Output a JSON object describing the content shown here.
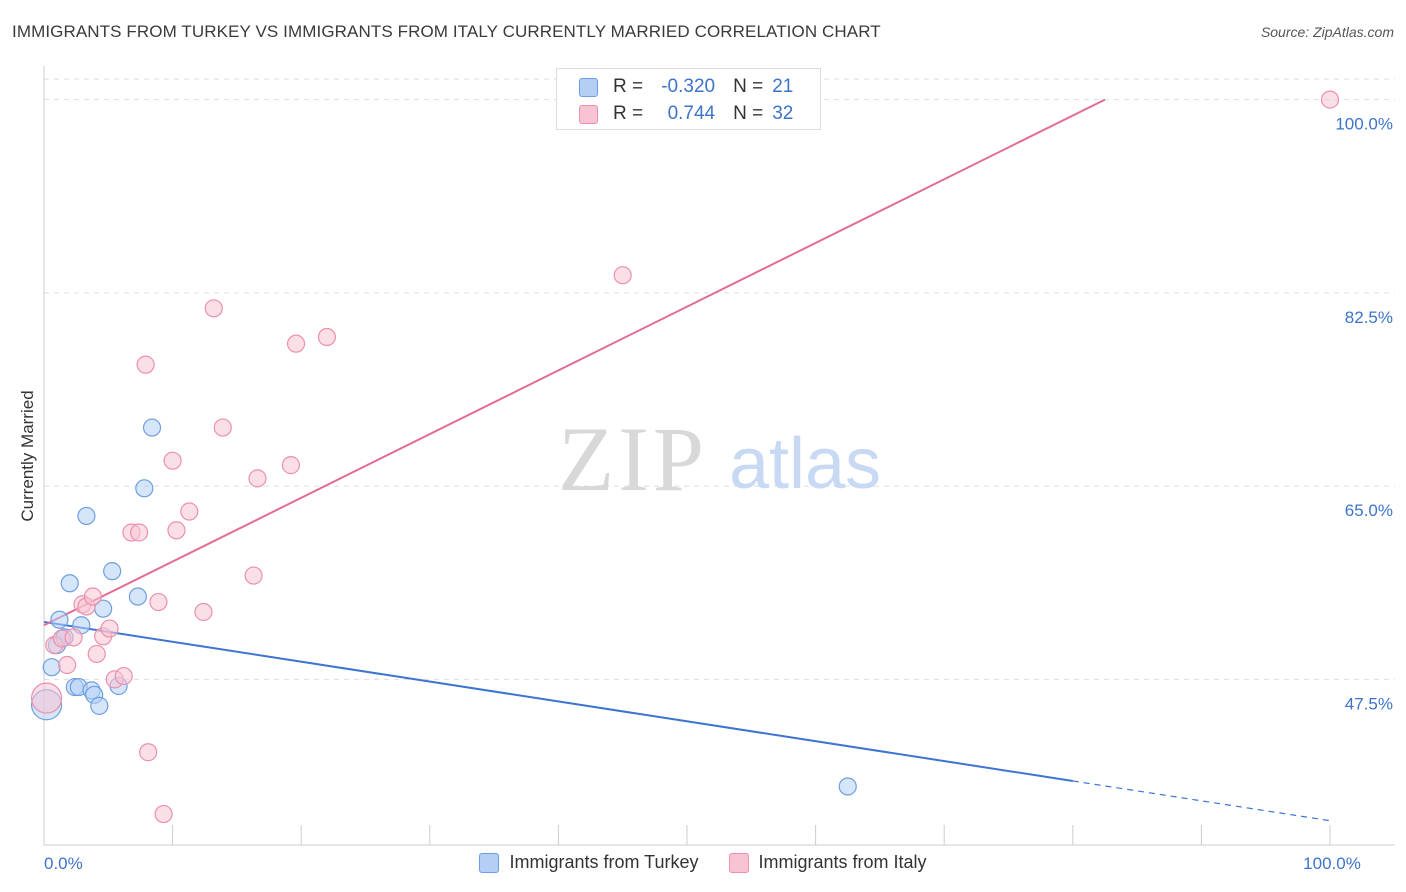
{
  "title": "IMMIGRANTS FROM TURKEY VS IMMIGRANTS FROM ITALY CURRENTLY MARRIED CORRELATION CHART",
  "source": "Source: ZipAtlas.com",
  "watermark": {
    "zip": "ZIP",
    "atlas": "atlas"
  },
  "colors": {
    "turkey_fill": "#b3cff5",
    "turkey_stroke": "#6f9fe0",
    "turkey_line": "#3d74d0",
    "italy_fill": "#f8c4d4",
    "italy_stroke": "#ec90ad",
    "italy_line": "#e36c93",
    "grid": "#dddddd",
    "axis_label": "#3d74c9"
  },
  "stats": {
    "r_label": "R =",
    "n_label": "N =",
    "turkey": {
      "r": "-0.320",
      "n": "21"
    },
    "italy": {
      "r": "0.744",
      "n": "32"
    }
  },
  "legend": {
    "turkey": "Immigrants from Turkey",
    "italy": "Immigrants from Italy"
  },
  "chart_data": {
    "type": "scatter",
    "title": "IMMIGRANTS FROM TURKEY VS IMMIGRANTS FROM ITALY CURRENTLY MARRIED CORRELATION CHART",
    "xlabel": "",
    "ylabel": "Currently Married",
    "xlim": [
      0,
      100
    ],
    "ylim": [
      32.5,
      102.5
    ],
    "x_tick_labels": [
      {
        "value": 0,
        "label": "0.0%"
      },
      {
        "value": 100,
        "label": "100.0%"
      }
    ],
    "y_tick_labels": [
      {
        "value": 47.5,
        "label": "47.5%"
      },
      {
        "value": 65.0,
        "label": "65.0%"
      },
      {
        "value": 82.5,
        "label": "82.5%"
      },
      {
        "value": 100.0,
        "label": "100.0%"
      }
    ],
    "grid": true,
    "series": [
      {
        "name": "Immigrants from Turkey",
        "color": "#6f9fe0",
        "points": [
          {
            "x": 0.2,
            "y": 45.2,
            "size": "large"
          },
          {
            "x": 0.6,
            "y": 48.6
          },
          {
            "x": 1.0,
            "y": 50.6
          },
          {
            "x": 1.2,
            "y": 52.9
          },
          {
            "x": 1.4,
            "y": 51.2
          },
          {
            "x": 1.6,
            "y": 51.3
          },
          {
            "x": 2.0,
            "y": 56.2
          },
          {
            "x": 2.4,
            "y": 46.8
          },
          {
            "x": 2.7,
            "y": 46.8
          },
          {
            "x": 2.9,
            "y": 52.4
          },
          {
            "x": 3.3,
            "y": 62.3
          },
          {
            "x": 3.7,
            "y": 46.5
          },
          {
            "x": 3.9,
            "y": 46.1
          },
          {
            "x": 4.3,
            "y": 45.1
          },
          {
            "x": 4.6,
            "y": 53.9
          },
          {
            "x": 5.3,
            "y": 57.3
          },
          {
            "x": 5.8,
            "y": 46.9
          },
          {
            "x": 7.3,
            "y": 55.0
          },
          {
            "x": 7.8,
            "y": 64.8
          },
          {
            "x": 8.4,
            "y": 70.3
          },
          {
            "x": 62.5,
            "y": 37.8
          }
        ],
        "trend": {
          "x0": 0,
          "y0": 52.7,
          "x1": 80,
          "y1": 38.3,
          "dashed_to_x": 100,
          "dashed_to_y": 34.7
        }
      },
      {
        "name": "Immigrants from Italy",
        "color": "#ec90ad",
        "points": [
          {
            "x": 0.2,
            "y": 45.8,
            "size": "large"
          },
          {
            "x": 0.8,
            "y": 50.6
          },
          {
            "x": 1.4,
            "y": 51.2
          },
          {
            "x": 1.8,
            "y": 48.8
          },
          {
            "x": 2.3,
            "y": 51.3
          },
          {
            "x": 3.0,
            "y": 54.3
          },
          {
            "x": 3.3,
            "y": 54.1
          },
          {
            "x": 3.8,
            "y": 55.0
          },
          {
            "x": 4.1,
            "y": 49.8
          },
          {
            "x": 4.6,
            "y": 51.4
          },
          {
            "x": 5.1,
            "y": 52.1
          },
          {
            "x": 5.5,
            "y": 47.5
          },
          {
            "x": 6.2,
            "y": 47.8
          },
          {
            "x": 6.8,
            "y": 60.8
          },
          {
            "x": 7.4,
            "y": 60.8
          },
          {
            "x": 7.9,
            "y": 76.0
          },
          {
            "x": 8.1,
            "y": 40.9
          },
          {
            "x": 8.9,
            "y": 54.5
          },
          {
            "x": 9.3,
            "y": 35.3
          },
          {
            "x": 10.0,
            "y": 67.3
          },
          {
            "x": 10.3,
            "y": 61.0
          },
          {
            "x": 11.3,
            "y": 62.7
          },
          {
            "x": 12.4,
            "y": 53.6
          },
          {
            "x": 13.2,
            "y": 81.1
          },
          {
            "x": 13.9,
            "y": 70.3
          },
          {
            "x": 16.3,
            "y": 56.9
          },
          {
            "x": 16.6,
            "y": 65.7
          },
          {
            "x": 19.2,
            "y": 66.9
          },
          {
            "x": 19.6,
            "y": 77.9
          },
          {
            "x": 22.0,
            "y": 78.5
          },
          {
            "x": 45.0,
            "y": 84.1
          },
          {
            "x": 100.0,
            "y": 100.0
          }
        ],
        "trend": {
          "x0": 0,
          "y0": 52.4,
          "x1": 82.5,
          "y1": 100.0
        }
      }
    ]
  }
}
